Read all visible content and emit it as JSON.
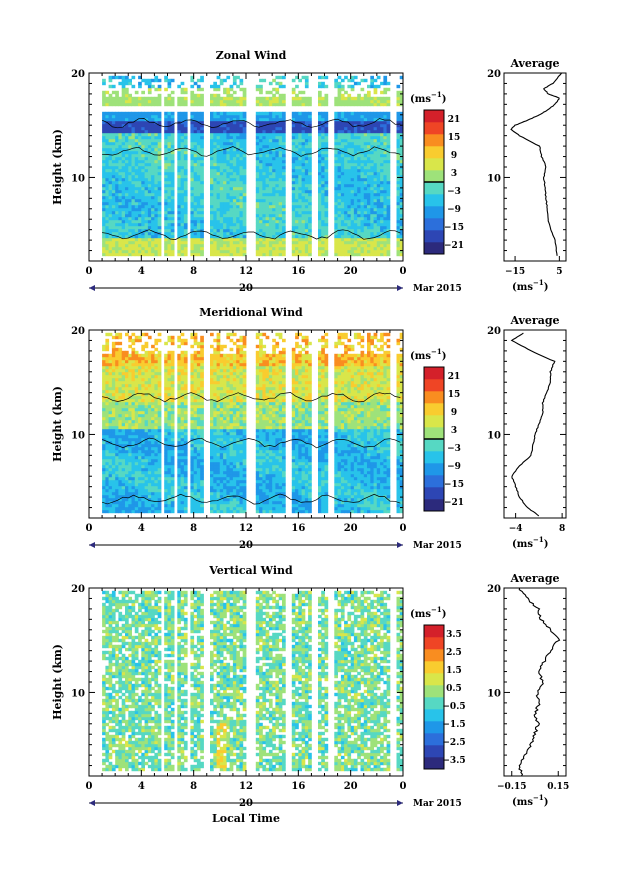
{
  "chart_data": [
    {
      "type": "heatmap",
      "title": "Zonal Wind",
      "ylabel": "Height (km)",
      "ylim": [
        2,
        20
      ],
      "y_ticks": [
        "20",
        "10"
      ],
      "x_ticks": [
        "0",
        "4",
        "8",
        "12",
        "16",
        "20",
        "0"
      ],
      "date_label": "20",
      "date_suffix": "Mar 2015",
      "colorbar": {
        "unit": "(ms",
        "unit_exp": "−1",
        "unit_close": ")",
        "labels": [
          "21",
          "15",
          "9",
          "3",
          "−3",
          "−9",
          "−15",
          "−21"
        ],
        "range": [
          -24,
          24
        ]
      },
      "profile": {
        "title": "Average",
        "x_ticks": [
          "−15",
          "5"
        ],
        "xlim": [
          -20,
          8
        ],
        "unit": "(ms",
        "unit_exp": "−1",
        "unit_close": ")",
        "heights": [
          2.5,
          4,
          5,
          6,
          7,
          8,
          9,
          10,
          11,
          12,
          13,
          14,
          14.6,
          15,
          15.5,
          16,
          16.5,
          17,
          17.6,
          18,
          18.5,
          19,
          20
        ],
        "values": [
          4,
          3,
          1,
          0,
          -0.5,
          -1,
          -1.5,
          -2,
          -1,
          -3,
          -4,
          -13,
          -17,
          -15,
          -9,
          -4,
          0,
          3,
          5,
          0,
          -2,
          2,
          6
        ]
      }
    },
    {
      "type": "heatmap",
      "title": "Meridional Wind",
      "ylabel": "Height (km)",
      "ylim": [
        2,
        20
      ],
      "y_ticks": [
        "20",
        "10"
      ],
      "x_ticks": [
        "0",
        "4",
        "8",
        "12",
        "16",
        "20",
        "0"
      ],
      "date_label": "20",
      "date_suffix": "Mar 2015",
      "colorbar": {
        "unit": "(ms",
        "unit_exp": "−1",
        "unit_close": ")",
        "labels": [
          "21",
          "15",
          "9",
          "3",
          "−3",
          "−9",
          "−15",
          "−21"
        ],
        "range": [
          -24,
          24
        ]
      },
      "profile": {
        "title": "Average",
        "x_ticks": [
          "−4",
          "8"
        ],
        "xlim": [
          -7,
          9
        ],
        "unit": "(ms",
        "unit_exp": "−1",
        "unit_close": ")",
        "heights": [
          2.2,
          3,
          4,
          5,
          6,
          7,
          8,
          9,
          10,
          11,
          12,
          13,
          14,
          15,
          16,
          17,
          18,
          19,
          19.7
        ],
        "values": [
          2,
          -1,
          -3,
          -4,
          -5,
          -3,
          0,
          0.5,
          1,
          2,
          3,
          3,
          4,
          5,
          5,
          6,
          0,
          -5,
          -2
        ]
      }
    },
    {
      "type": "heatmap",
      "title": "Vertical Wind",
      "ylabel": "Height (km)",
      "xlabel": "Local Time",
      "ylim": [
        2,
        20
      ],
      "y_ticks": [
        "20",
        "10"
      ],
      "x_ticks": [
        "0",
        "4",
        "8",
        "12",
        "16",
        "20",
        "0"
      ],
      "date_label": "20",
      "date_suffix": "Mar 2015",
      "colorbar": {
        "unit": "(ms",
        "unit_exp": "−1",
        "unit_close": ")",
        "labels": [
          "3.5",
          "2.5",
          "1.5",
          "0.5",
          "−0.5",
          "−1.5",
          "−2.5",
          "−3.5"
        ],
        "range": [
          -4,
          4
        ]
      },
      "profile": {
        "title": "Average",
        "x_ticks": [
          "−0.15",
          "0.15"
        ],
        "xlim": [
          -0.2,
          0.2
        ],
        "unit": "(ms",
        "unit_exp": "−1",
        "unit_close": ")",
        "heights": [
          2,
          3,
          4,
          5,
          6,
          7,
          8,
          9,
          10,
          11,
          12,
          13,
          14,
          15,
          16,
          17,
          18,
          19,
          20
        ],
        "values": [
          -0.08,
          -0.1,
          -0.06,
          -0.03,
          0,
          0.02,
          0,
          0.03,
          0.01,
          0.05,
          0.02,
          0.06,
          0.1,
          0.15,
          0.1,
          0.04,
          0.02,
          -0.05,
          -0.1
        ]
      }
    }
  ],
  "colors": {
    "bands": [
      "#2c2a7c",
      "#2d46b4",
      "#2c6fdb",
      "#1f97e8",
      "#28c3ea",
      "#56d8c3",
      "#9ee27a",
      "#d9e64a",
      "#f9cc2f",
      "#f98d20",
      "#ef4525",
      "#d4202a"
    ]
  }
}
